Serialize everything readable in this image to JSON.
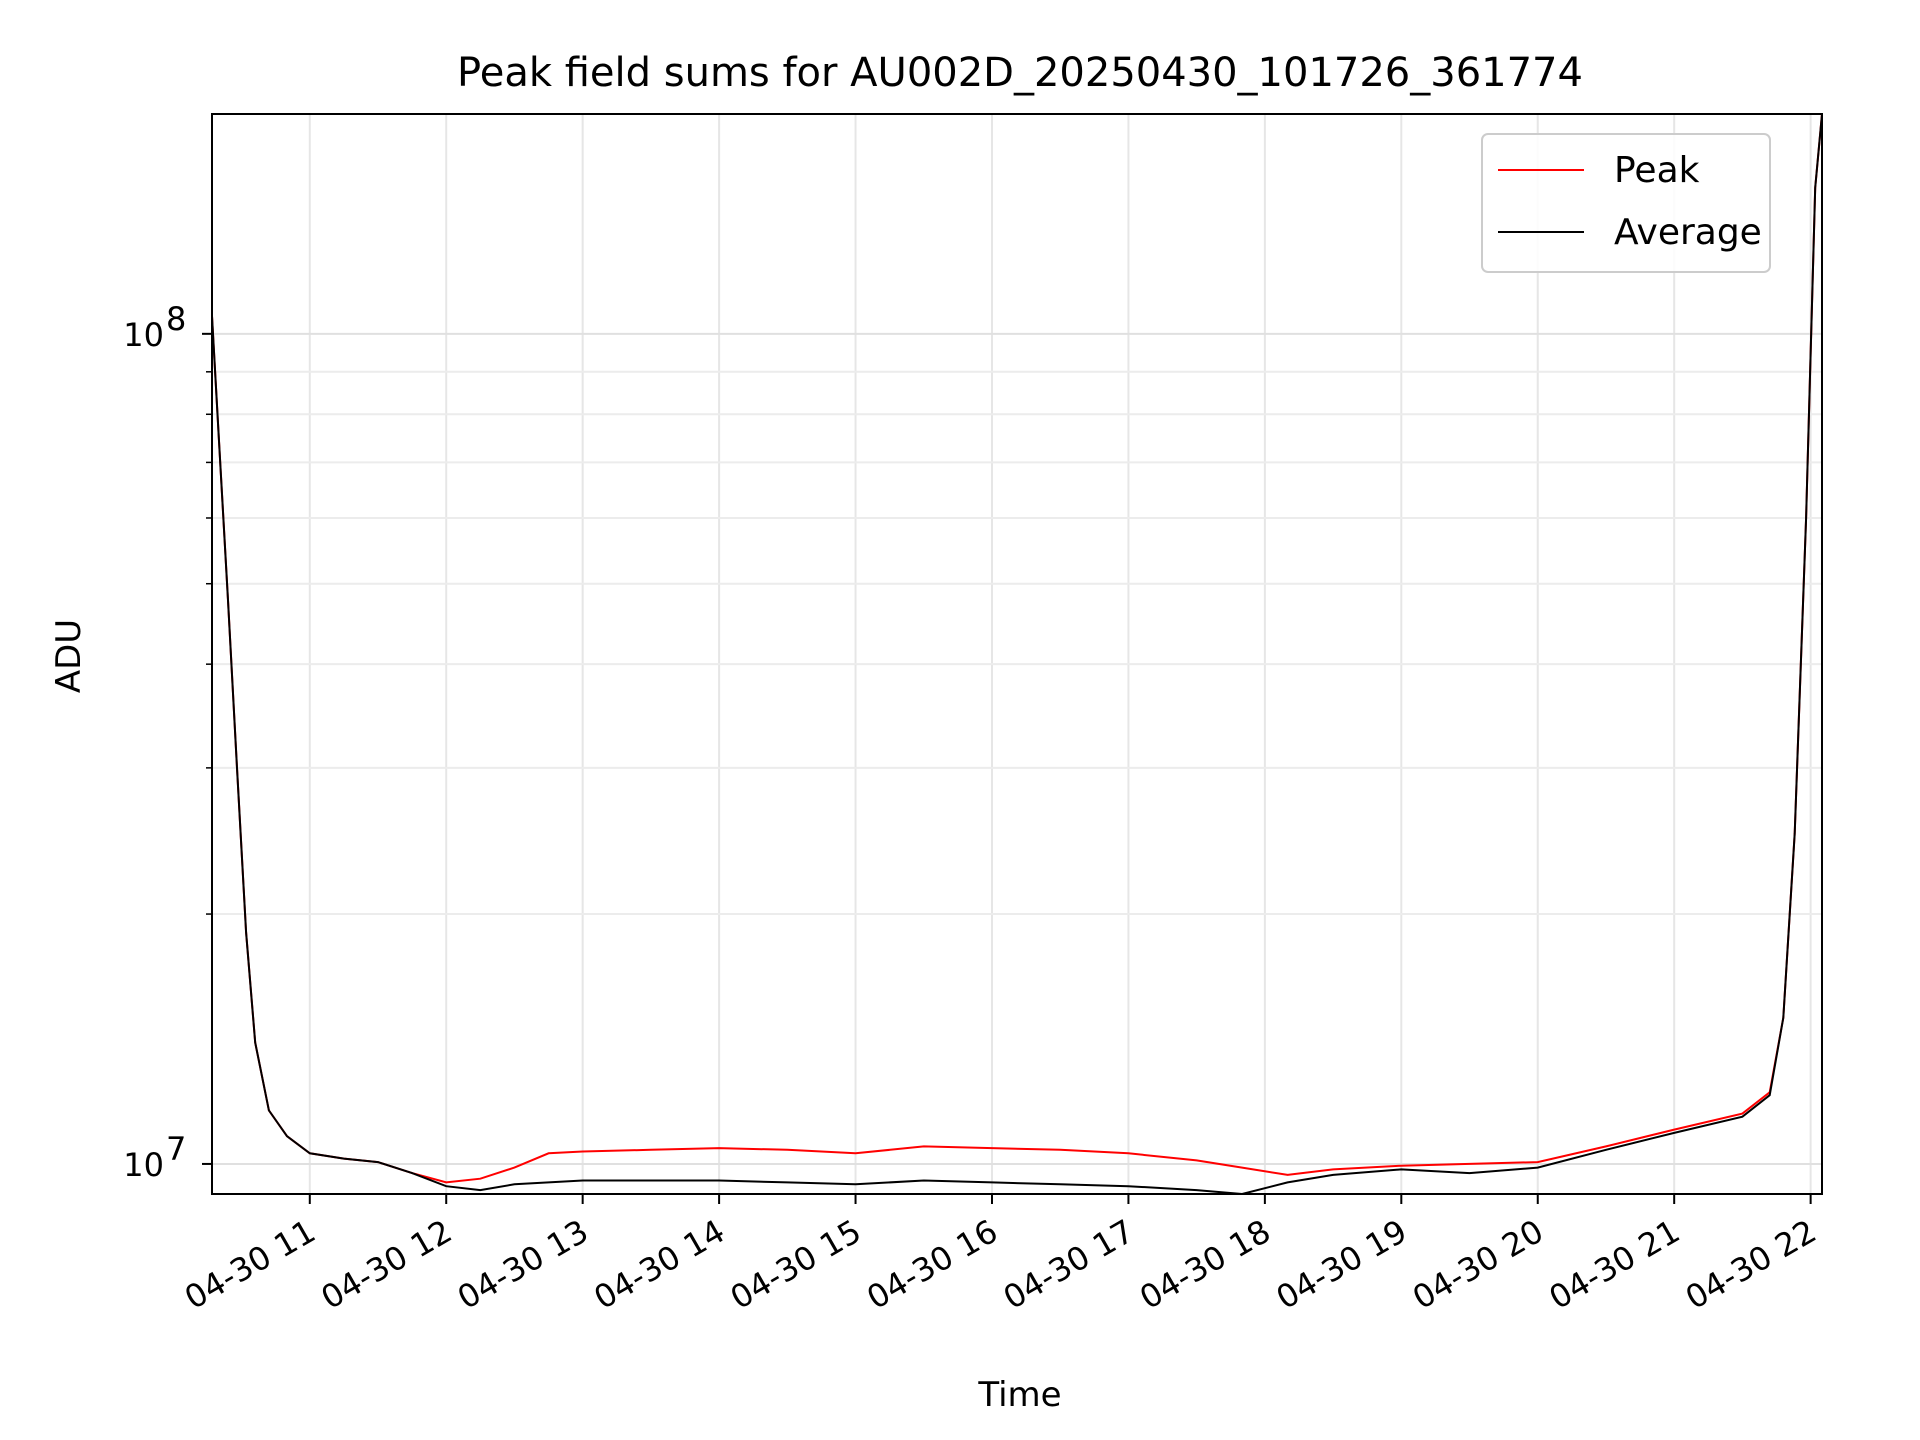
{
  "chart_data": {
    "type": "line",
    "title": "Peak field sums for AU002D_20250430_101726_361774",
    "xlabel": "Time",
    "ylabel": "ADU",
    "y_scale": "log",
    "ylim": [
      9200000,
      184000000
    ],
    "xlim": [
      "2025-04-30 10:17",
      "2025-04-30 22:05"
    ],
    "x_ticks": [
      {
        "value": "2025-04-30 11:00",
        "label": "04-30 11"
      },
      {
        "value": "2025-04-30 12:00",
        "label": "04-30 12"
      },
      {
        "value": "2025-04-30 13:00",
        "label": "04-30 13"
      },
      {
        "value": "2025-04-30 14:00",
        "label": "04-30 14"
      },
      {
        "value": "2025-04-30 15:00",
        "label": "04-30 15"
      },
      {
        "value": "2025-04-30 16:00",
        "label": "04-30 16"
      },
      {
        "value": "2025-04-30 17:00",
        "label": "04-30 17"
      },
      {
        "value": "2025-04-30 18:00",
        "label": "04-30 18"
      },
      {
        "value": "2025-04-30 19:00",
        "label": "04-30 19"
      },
      {
        "value": "2025-04-30 20:00",
        "label": "04-30 20"
      },
      {
        "value": "2025-04-30 21:00",
        "label": "04-30 21"
      },
      {
        "value": "2025-04-30 22:00",
        "label": "04-30 22"
      }
    ],
    "y_ticks": [
      {
        "value": 10000000,
        "base": "10",
        "exp": "7"
      },
      {
        "value": 100000000,
        "base": "10",
        "exp": "8"
      }
    ],
    "grid": true,
    "legend_position": "top-right",
    "series": [
      {
        "name": "Peak",
        "color": "#ff0000",
        "x": [
          "2025-04-30 10:17",
          "2025-04-30 10:20",
          "2025-04-30 10:24",
          "2025-04-30 10:28",
          "2025-04-30 10:32",
          "2025-04-30 10:36",
          "2025-04-30 10:42",
          "2025-04-30 10:50",
          "2025-04-30 11:00",
          "2025-04-30 11:15",
          "2025-04-30 11:30",
          "2025-04-30 11:45",
          "2025-04-30 12:00",
          "2025-04-30 12:15",
          "2025-04-30 12:30",
          "2025-04-30 12:45",
          "2025-04-30 13:00",
          "2025-04-30 13:30",
          "2025-04-30 14:00",
          "2025-04-30 14:30",
          "2025-04-30 15:00",
          "2025-04-30 15:30",
          "2025-04-30 16:00",
          "2025-04-30 16:30",
          "2025-04-30 17:00",
          "2025-04-30 17:30",
          "2025-04-30 17:50",
          "2025-04-30 18:10",
          "2025-04-30 18:30",
          "2025-04-30 19:00",
          "2025-04-30 19:30",
          "2025-04-30 20:00",
          "2025-04-30 20:30",
          "2025-04-30 21:00",
          "2025-04-30 21:30",
          "2025-04-30 21:42",
          "2025-04-30 21:48",
          "2025-04-30 21:53",
          "2025-04-30 21:58",
          "2025-04-30 22:02",
          "2025-04-30 22:05"
        ],
        "values": [
          105000000,
          75000000,
          48000000,
          30000000,
          19000000,
          14000000,
          11600000,
          10800000,
          10300000,
          10150000,
          10050000,
          9750000,
          9500000,
          9600000,
          9900000,
          10300000,
          10350000,
          10400000,
          10450000,
          10400000,
          10300000,
          10500000,
          10450000,
          10400000,
          10300000,
          10100000,
          9900000,
          9700000,
          9850000,
          9950000,
          10000000,
          10050000,
          10500000,
          11000000,
          11500000,
          12200000,
          15000000,
          25000000,
          60000000,
          150000000,
          184000000
        ]
      },
      {
        "name": "Average",
        "color": "#000000",
        "x": [
          "2025-04-30 10:17",
          "2025-04-30 10:20",
          "2025-04-30 10:24",
          "2025-04-30 10:28",
          "2025-04-30 10:32",
          "2025-04-30 10:36",
          "2025-04-30 10:42",
          "2025-04-30 10:50",
          "2025-04-30 11:00",
          "2025-04-30 11:15",
          "2025-04-30 11:30",
          "2025-04-30 11:45",
          "2025-04-30 12:00",
          "2025-04-30 12:15",
          "2025-04-30 12:30",
          "2025-04-30 12:45",
          "2025-04-30 13:00",
          "2025-04-30 13:30",
          "2025-04-30 14:00",
          "2025-04-30 14:30",
          "2025-04-30 15:00",
          "2025-04-30 15:30",
          "2025-04-30 16:00",
          "2025-04-30 16:30",
          "2025-04-30 17:00",
          "2025-04-30 17:30",
          "2025-04-30 17:50",
          "2025-04-30 18:10",
          "2025-04-30 18:30",
          "2025-04-30 19:00",
          "2025-04-30 19:30",
          "2025-04-30 20:00",
          "2025-04-30 20:30",
          "2025-04-30 21:00",
          "2025-04-30 21:30",
          "2025-04-30 21:42",
          "2025-04-30 21:48",
          "2025-04-30 21:53",
          "2025-04-30 21:58",
          "2025-04-30 22:02",
          "2025-04-30 22:05"
        ],
        "values": [
          105000000,
          75000000,
          48000000,
          30000000,
          19000000,
          14000000,
          11600000,
          10800000,
          10300000,
          10150000,
          10050000,
          9750000,
          9400000,
          9300000,
          9450000,
          9500000,
          9550000,
          9550000,
          9550000,
          9500000,
          9450000,
          9550000,
          9500000,
          9450000,
          9400000,
          9300000,
          9200000,
          9500000,
          9700000,
          9850000,
          9750000,
          9900000,
          10400000,
          10900000,
          11400000,
          12100000,
          15000000,
          25000000,
          60000000,
          150000000,
          184000000
        ]
      }
    ]
  }
}
